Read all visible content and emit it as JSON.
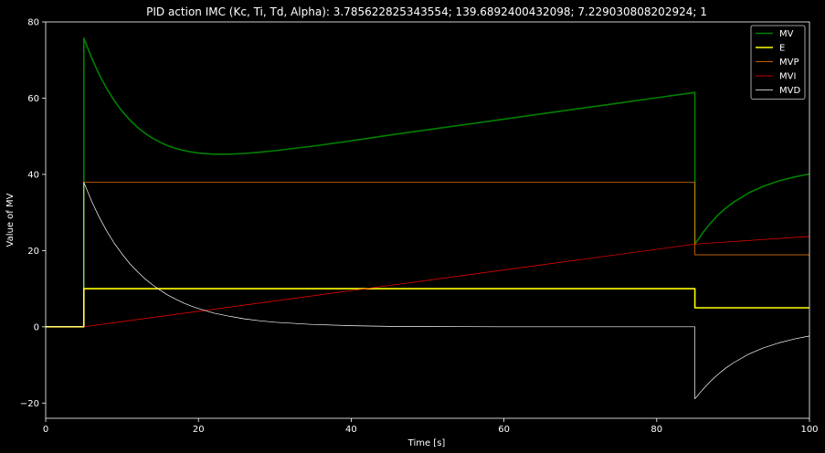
{
  "chart_data": {
    "type": "line",
    "title": "PID action IMC (Kc, Ti, Td, Alpha):  3.785622825343554;  139.6892400432098;  7.229030808202924;  1",
    "xlabel": "Time [s]",
    "ylabel": "Value of MV",
    "xlim": [
      0,
      100
    ],
    "ylim": [
      -24,
      80
    ],
    "xticks": [
      0,
      20,
      40,
      60,
      80,
      100
    ],
    "yticks": [
      -20,
      0,
      20,
      40,
      60,
      80
    ],
    "grid": false,
    "legend_position": "top-right",
    "background": "#000000",
    "series": [
      {
        "name": "MV",
        "color": "#008000",
        "x": [
          0,
          5,
          5,
          6,
          7,
          8,
          9,
          10,
          11,
          12,
          13,
          14,
          15,
          16,
          17,
          18,
          19,
          20,
          22,
          24,
          26,
          28,
          30,
          35,
          40,
          45,
          50,
          55,
          60,
          65,
          70,
          75,
          80,
          85,
          85,
          86,
          87,
          88,
          89,
          90,
          92,
          94,
          96,
          98,
          100
        ],
        "y": [
          0,
          0,
          75.7,
          70.6,
          66.2,
          62.5,
          59.3,
          56.6,
          54.3,
          52.4,
          50.8,
          49.5,
          48.4,
          47.5,
          46.8,
          46.3,
          45.9,
          45.6,
          45.3,
          45.3,
          45.5,
          45.8,
          46.2,
          47.4,
          48.8,
          50.3,
          51.7,
          53.1,
          54.5,
          55.9,
          57.3,
          58.7,
          60.1,
          61.5,
          21.7,
          24.6,
          27.1,
          29.3,
          31.1,
          32.6,
          35.1,
          36.9,
          38.3,
          39.3,
          40.1
        ]
      },
      {
        "name": "E",
        "color": "#ffff00",
        "x": [
          0,
          5,
          5,
          85,
          85,
          100
        ],
        "y": [
          0,
          0,
          10,
          10,
          5,
          5
        ]
      },
      {
        "name": "MVP",
        "color": "#ff8000",
        "x": [
          0,
          5,
          5,
          85,
          85,
          100
        ],
        "y": [
          0,
          0,
          37.9,
          37.9,
          18.9,
          18.9
        ]
      },
      {
        "name": "MVI",
        "color": "#ff0000",
        "x": [
          0,
          5,
          85,
          100
        ],
        "y": [
          0,
          0,
          21.7,
          23.7
        ]
      },
      {
        "name": "MVD",
        "color": "#ffffff",
        "x": [
          0,
          5,
          5,
          6,
          7,
          8,
          9,
          10,
          11,
          12,
          13,
          14,
          15,
          16,
          17,
          18,
          19,
          20,
          22,
          24,
          26,
          28,
          30,
          35,
          40,
          45,
          50,
          60,
          70,
          85,
          85,
          86,
          87,
          88,
          89,
          90,
          92,
          94,
          96,
          98,
          100
        ],
        "y": [
          0,
          0,
          37.9,
          33.0,
          28.8,
          25.1,
          21.9,
          19.1,
          16.6,
          14.5,
          12.6,
          11.0,
          9.6,
          8.3,
          7.3,
          6.3,
          5.5,
          4.8,
          3.6,
          2.8,
          2.1,
          1.6,
          1.2,
          0.6,
          0.3,
          0.1,
          0.05,
          0.01,
          0,
          0,
          -18.9,
          -16.5,
          -14.4,
          -12.5,
          -10.9,
          -9.5,
          -7.2,
          -5.5,
          -4.2,
          -3.2,
          -2.4
        ]
      }
    ]
  }
}
